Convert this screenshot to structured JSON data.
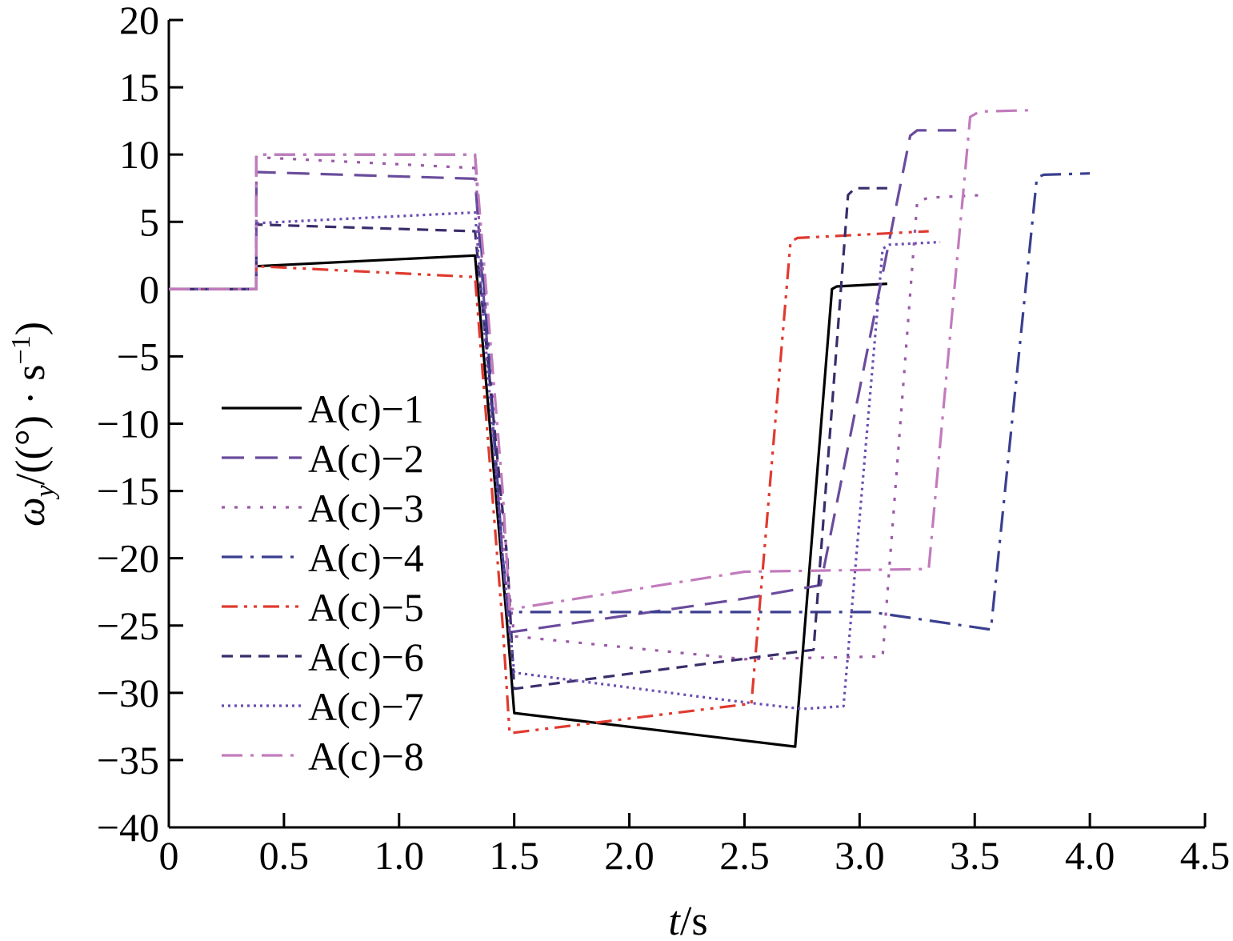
{
  "chart_data": {
    "type": "line",
    "xlabel_italic": "t",
    "xlabel_unit": "/s",
    "ylabel_symbol": "ω",
    "ylabel_sub": "y",
    "ylabel_unit": "/((°) · s",
    "ylabel_sup": "−1",
    "ylabel_close": ")",
    "xlim": [
      0,
      4.5
    ],
    "ylim": [
      -40,
      20
    ],
    "xticks": [
      0,
      0.5,
      1.0,
      1.5,
      2.0,
      2.5,
      3.0,
      3.5,
      4.0,
      4.5
    ],
    "xtick_labels": [
      "0",
      "0.5",
      "1.0",
      "1.5",
      "2.0",
      "2.5",
      "3.0",
      "3.5",
      "4.0",
      "4.5"
    ],
    "yticks": [
      20,
      15,
      10,
      5,
      0,
      -5,
      -10,
      -15,
      -20,
      -25,
      -30,
      -35,
      -40
    ],
    "ytick_labels": [
      "20",
      "15",
      "10",
      "5",
      "0",
      "−5",
      "−10",
      "−15",
      "−20",
      "−25",
      "−30",
      "−35",
      "−40"
    ],
    "grid": false,
    "legend_position": "lower-left",
    "series": [
      {
        "name": "A(c)−1",
        "color": "#000000",
        "dash": "solid",
        "x": [
          0,
          0.38,
          0.38,
          1.33,
          1.47,
          1.5,
          2.72,
          2.88,
          2.9,
          3.12
        ],
        "y": [
          0,
          0,
          1.7,
          2.5,
          -25,
          -31.5,
          -34,
          0,
          0.2,
          0.4
        ]
      },
      {
        "name": "A(c)−2",
        "color": "#6a4c9c",
        "dash": "longdash",
        "x": [
          0,
          0.38,
          0.38,
          1.33,
          1.45,
          1.48,
          2.5,
          2.83,
          3.22,
          3.25,
          3.42
        ],
        "y": [
          0,
          0,
          8.7,
          8.2,
          -20,
          -25.5,
          -23,
          -22,
          11.4,
          11.8,
          11.8
        ]
      },
      {
        "name": "A(c)−3",
        "color": "#9b5aa8",
        "dash": "dot",
        "x": [
          0,
          0.38,
          0.38,
          1.33,
          1.45,
          1.5,
          2.5,
          3.1,
          3.25,
          3.3,
          3.55
        ],
        "y": [
          0,
          0,
          9.8,
          9.0,
          -18,
          -25.8,
          -27.5,
          -27.3,
          6.5,
          6.8,
          7.0
        ]
      },
      {
        "name": "A(c)−4",
        "color": "#3a3f8f",
        "dash": "dashdot",
        "x": [
          0,
          0.38,
          0.38,
          1.33,
          1.45,
          1.48,
          3.05,
          3.57,
          3.77,
          3.8,
          4.0
        ],
        "y": [
          0,
          0,
          10.0,
          10.0,
          -20,
          -24,
          -24,
          -25.3,
          8.3,
          8.5,
          8.6
        ]
      },
      {
        "name": "A(c)−5",
        "color": "#e03a2f",
        "dash": "dashdotdot",
        "x": [
          0,
          0.38,
          0.38,
          1.33,
          1.45,
          1.48,
          2.53,
          2.7,
          2.73,
          3.3
        ],
        "y": [
          0,
          0,
          1.7,
          0.9,
          -25,
          -33,
          -30.8,
          3.5,
          3.8,
          4.3
        ]
      },
      {
        "name": "A(c)−6",
        "color": "#3b2d6b",
        "dash": "dash",
        "x": [
          0,
          0.38,
          0.38,
          1.33,
          1.47,
          1.5,
          2.8,
          2.95,
          2.98,
          3.12
        ],
        "y": [
          0,
          0,
          4.8,
          4.3,
          -20,
          -29.7,
          -26.8,
          7.0,
          7.5,
          7.5
        ]
      },
      {
        "name": "A(c)−7",
        "color": "#6a4cb0",
        "dash": "finedot",
        "x": [
          0,
          0.38,
          0.38,
          1.33,
          1.45,
          1.5,
          2.4,
          2.75,
          2.93,
          3.1,
          3.13,
          3.35
        ],
        "y": [
          0,
          0,
          4.9,
          5.7,
          -20,
          -28.5,
          -30.5,
          -31.2,
          -31.0,
          3.0,
          3.3,
          3.5
        ]
      },
      {
        "name": "A(c)−8",
        "color": "#c27bbd",
        "dash": "dashdot",
        "x": [
          0,
          0.38,
          0.38,
          1.33,
          1.45,
          1.48,
          2.5,
          3.3,
          3.48,
          3.52,
          3.75
        ],
        "y": [
          0,
          0,
          10.0,
          10.0,
          -15,
          -23.8,
          -21,
          -20.8,
          12.8,
          13.2,
          13.3
        ]
      }
    ]
  }
}
